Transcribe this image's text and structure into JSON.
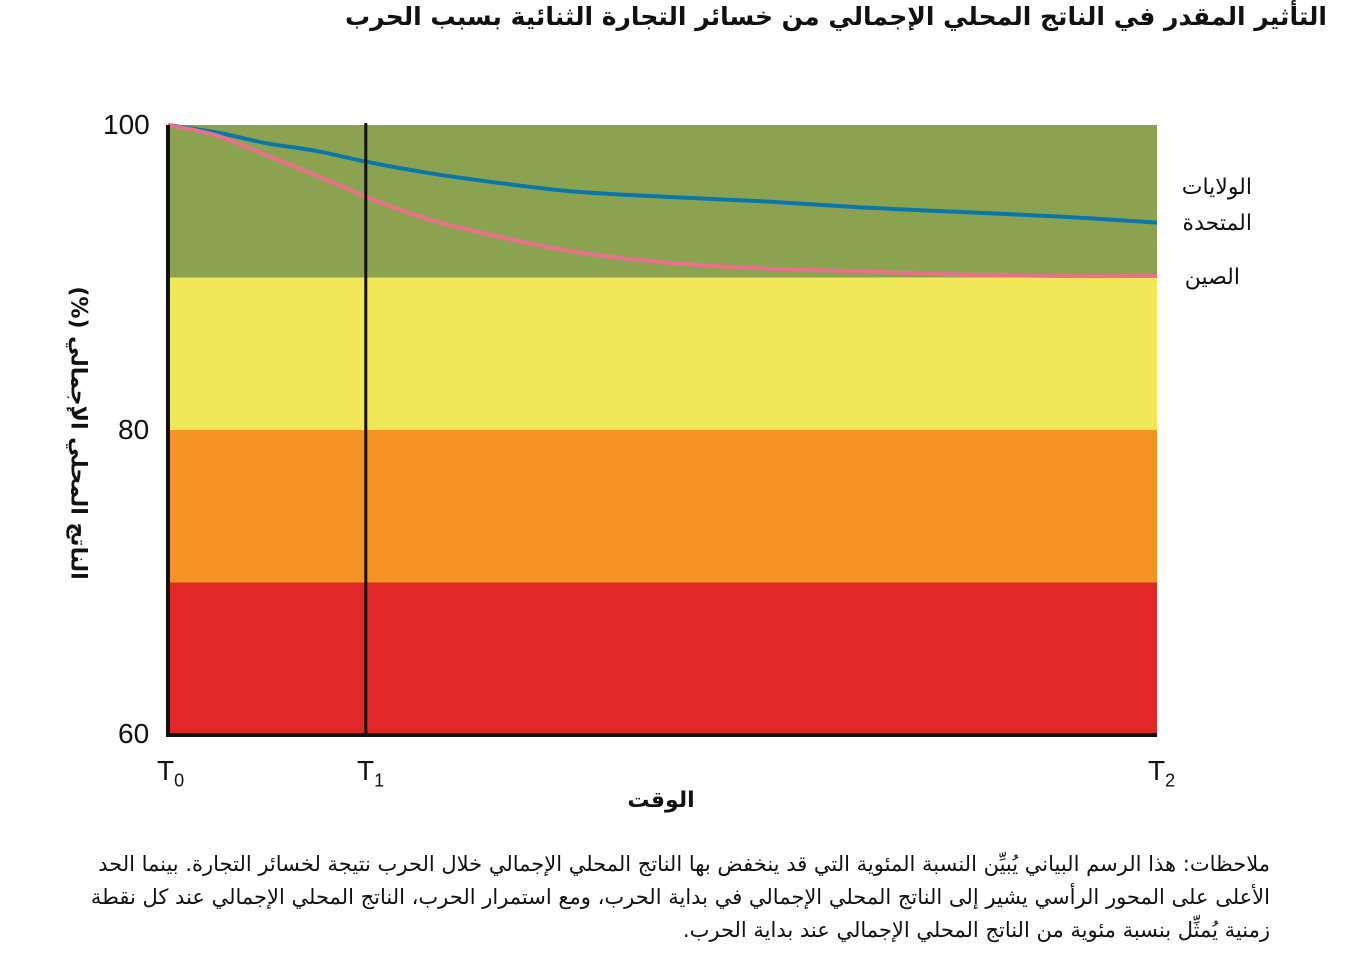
{
  "chart_data": {
    "type": "line",
    "title": "التأثير المقدر في الناتج المحلي الإجمالي من خسائر التجارة الثنائية بسبب الحرب",
    "xlabel": "الوقت",
    "ylabel": "الناتج المحلي الإجمالي (%)",
    "ylim": [
      60,
      100
    ],
    "yticks": [
      "100",
      "80",
      "60"
    ],
    "xlim": [
      0,
      1
    ],
    "xticks": [
      {
        "label": "T",
        "sub": "0",
        "x": 0
      },
      {
        "label": "T",
        "sub": "1",
        "x": 0.2
      },
      {
        "label": "T",
        "sub": "2",
        "x": 1
      }
    ],
    "bands": [
      {
        "from": 90,
        "to": 100,
        "color": "#8ba350"
      },
      {
        "from": 80,
        "to": 90,
        "color": "#f0e858"
      },
      {
        "from": 70,
        "to": 80,
        "color": "#f39325"
      },
      {
        "from": 60,
        "to": 70,
        "color": "#e12727"
      }
    ],
    "vertical_line_x": 0.2,
    "series": [
      {
        "name": "الولايات المتحدة",
        "color": "#0b76aa",
        "x": [
          0,
          0.05,
          0.1,
          0.15,
          0.2,
          0.25,
          0.3,
          0.4,
          0.5,
          0.6,
          0.7,
          0.8,
          0.9,
          1.0
        ],
        "y": [
          100,
          99.5,
          98.8,
          98.3,
          97.6,
          97.0,
          96.5,
          95.7,
          95.3,
          95.0,
          94.6,
          94.3,
          94.0,
          93.6
        ]
      },
      {
        "name": "الصين",
        "color": "#e8708a",
        "x": [
          0,
          0.05,
          0.1,
          0.15,
          0.2,
          0.25,
          0.3,
          0.4,
          0.5,
          0.6,
          0.7,
          0.8,
          0.9,
          1.0
        ],
        "y": [
          100,
          99.3,
          98.0,
          96.7,
          95.3,
          94.1,
          93.2,
          91.8,
          91.0,
          90.6,
          90.4,
          90.2,
          90.1,
          90.1
        ]
      }
    ]
  },
  "legend": {
    "us_line1": "الولايات",
    "us_line2": "المتحدة",
    "china": "الصين"
  },
  "notes": "ملاحظات: هذا الرسم البياني يُبيِّن النسبة المئوية التي قد ينخفض بها الناتج المحلي الإجمالي خلال الحرب نتيجة لخسائر التجارة. بينما الحد الأعلى على المحور الرأسي يشير إلى الناتج المحلي الإجمالي في بداية الحرب، ومع استمرار الحرب، الناتج المحلي الإجمالي عند كل نقطة زمنية يُمثِّل بنسبة مئوية من الناتج المحلي الإجمالي عند بداية الحرب."
}
